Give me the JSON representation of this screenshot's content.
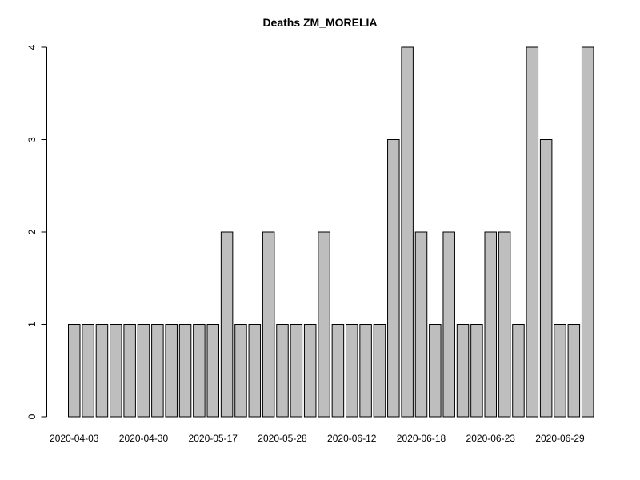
{
  "chart_data": {
    "type": "bar",
    "title": "Deaths ZM_MORELIA",
    "xlabel": "",
    "ylabel": "",
    "ylim": [
      0,
      4
    ],
    "yticks": [
      "0",
      "1",
      "2",
      "3",
      "4"
    ],
    "categories": [
      "2020-04-03",
      "",
      "",
      "",
      "",
      "2020-04-30",
      "",
      "",
      "",
      "",
      "2020-05-17",
      "",
      "",
      "",
      "",
      "2020-05-28",
      "",
      "",
      "",
      "",
      "2020-06-12",
      "",
      "",
      "",
      "",
      "2020-06-18",
      "",
      "",
      "",
      "",
      "2020-06-23",
      "",
      "",
      "",
      "",
      "2020-06-29",
      "",
      ""
    ],
    "values": [
      1,
      1,
      1,
      1,
      1,
      1,
      1,
      1,
      1,
      1,
      1,
      2,
      1,
      1,
      2,
      1,
      1,
      1,
      2,
      1,
      1,
      1,
      1,
      3,
      4,
      2,
      1,
      2,
      1,
      1,
      2,
      2,
      1,
      4,
      3,
      1,
      1,
      4
    ],
    "bar_fill": "#bebebe",
    "bar_stroke": "#000000",
    "grid": false
  }
}
